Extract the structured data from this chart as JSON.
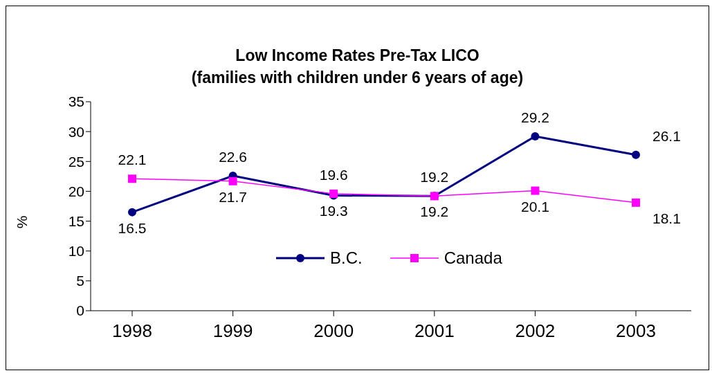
{
  "chart_data": {
    "type": "line",
    "title": "Low Income Rates Pre-Tax LICO\n(families with children under 6 years of age)",
    "ylabel": "%",
    "categories": [
      "1998",
      "1999",
      "2000",
      "2001",
      "2002",
      "2003"
    ],
    "series": [
      {
        "name": "B.C.",
        "color": "#000080",
        "values": [
          16.5,
          22.6,
          19.3,
          19.2,
          29.2,
          26.1
        ],
        "marker": "circle"
      },
      {
        "name": "Canada",
        "color": "#ff00ff",
        "values": [
          22.1,
          21.7,
          19.6,
          19.2,
          20.1,
          18.1
        ],
        "marker": "square"
      }
    ],
    "ylim": [
      0,
      35
    ],
    "yticks": [
      0,
      5,
      10,
      15,
      20,
      25,
      30,
      35
    ],
    "grid": false,
    "legend": "bottom",
    "data_labels": true,
    "line_style": "solid"
  }
}
